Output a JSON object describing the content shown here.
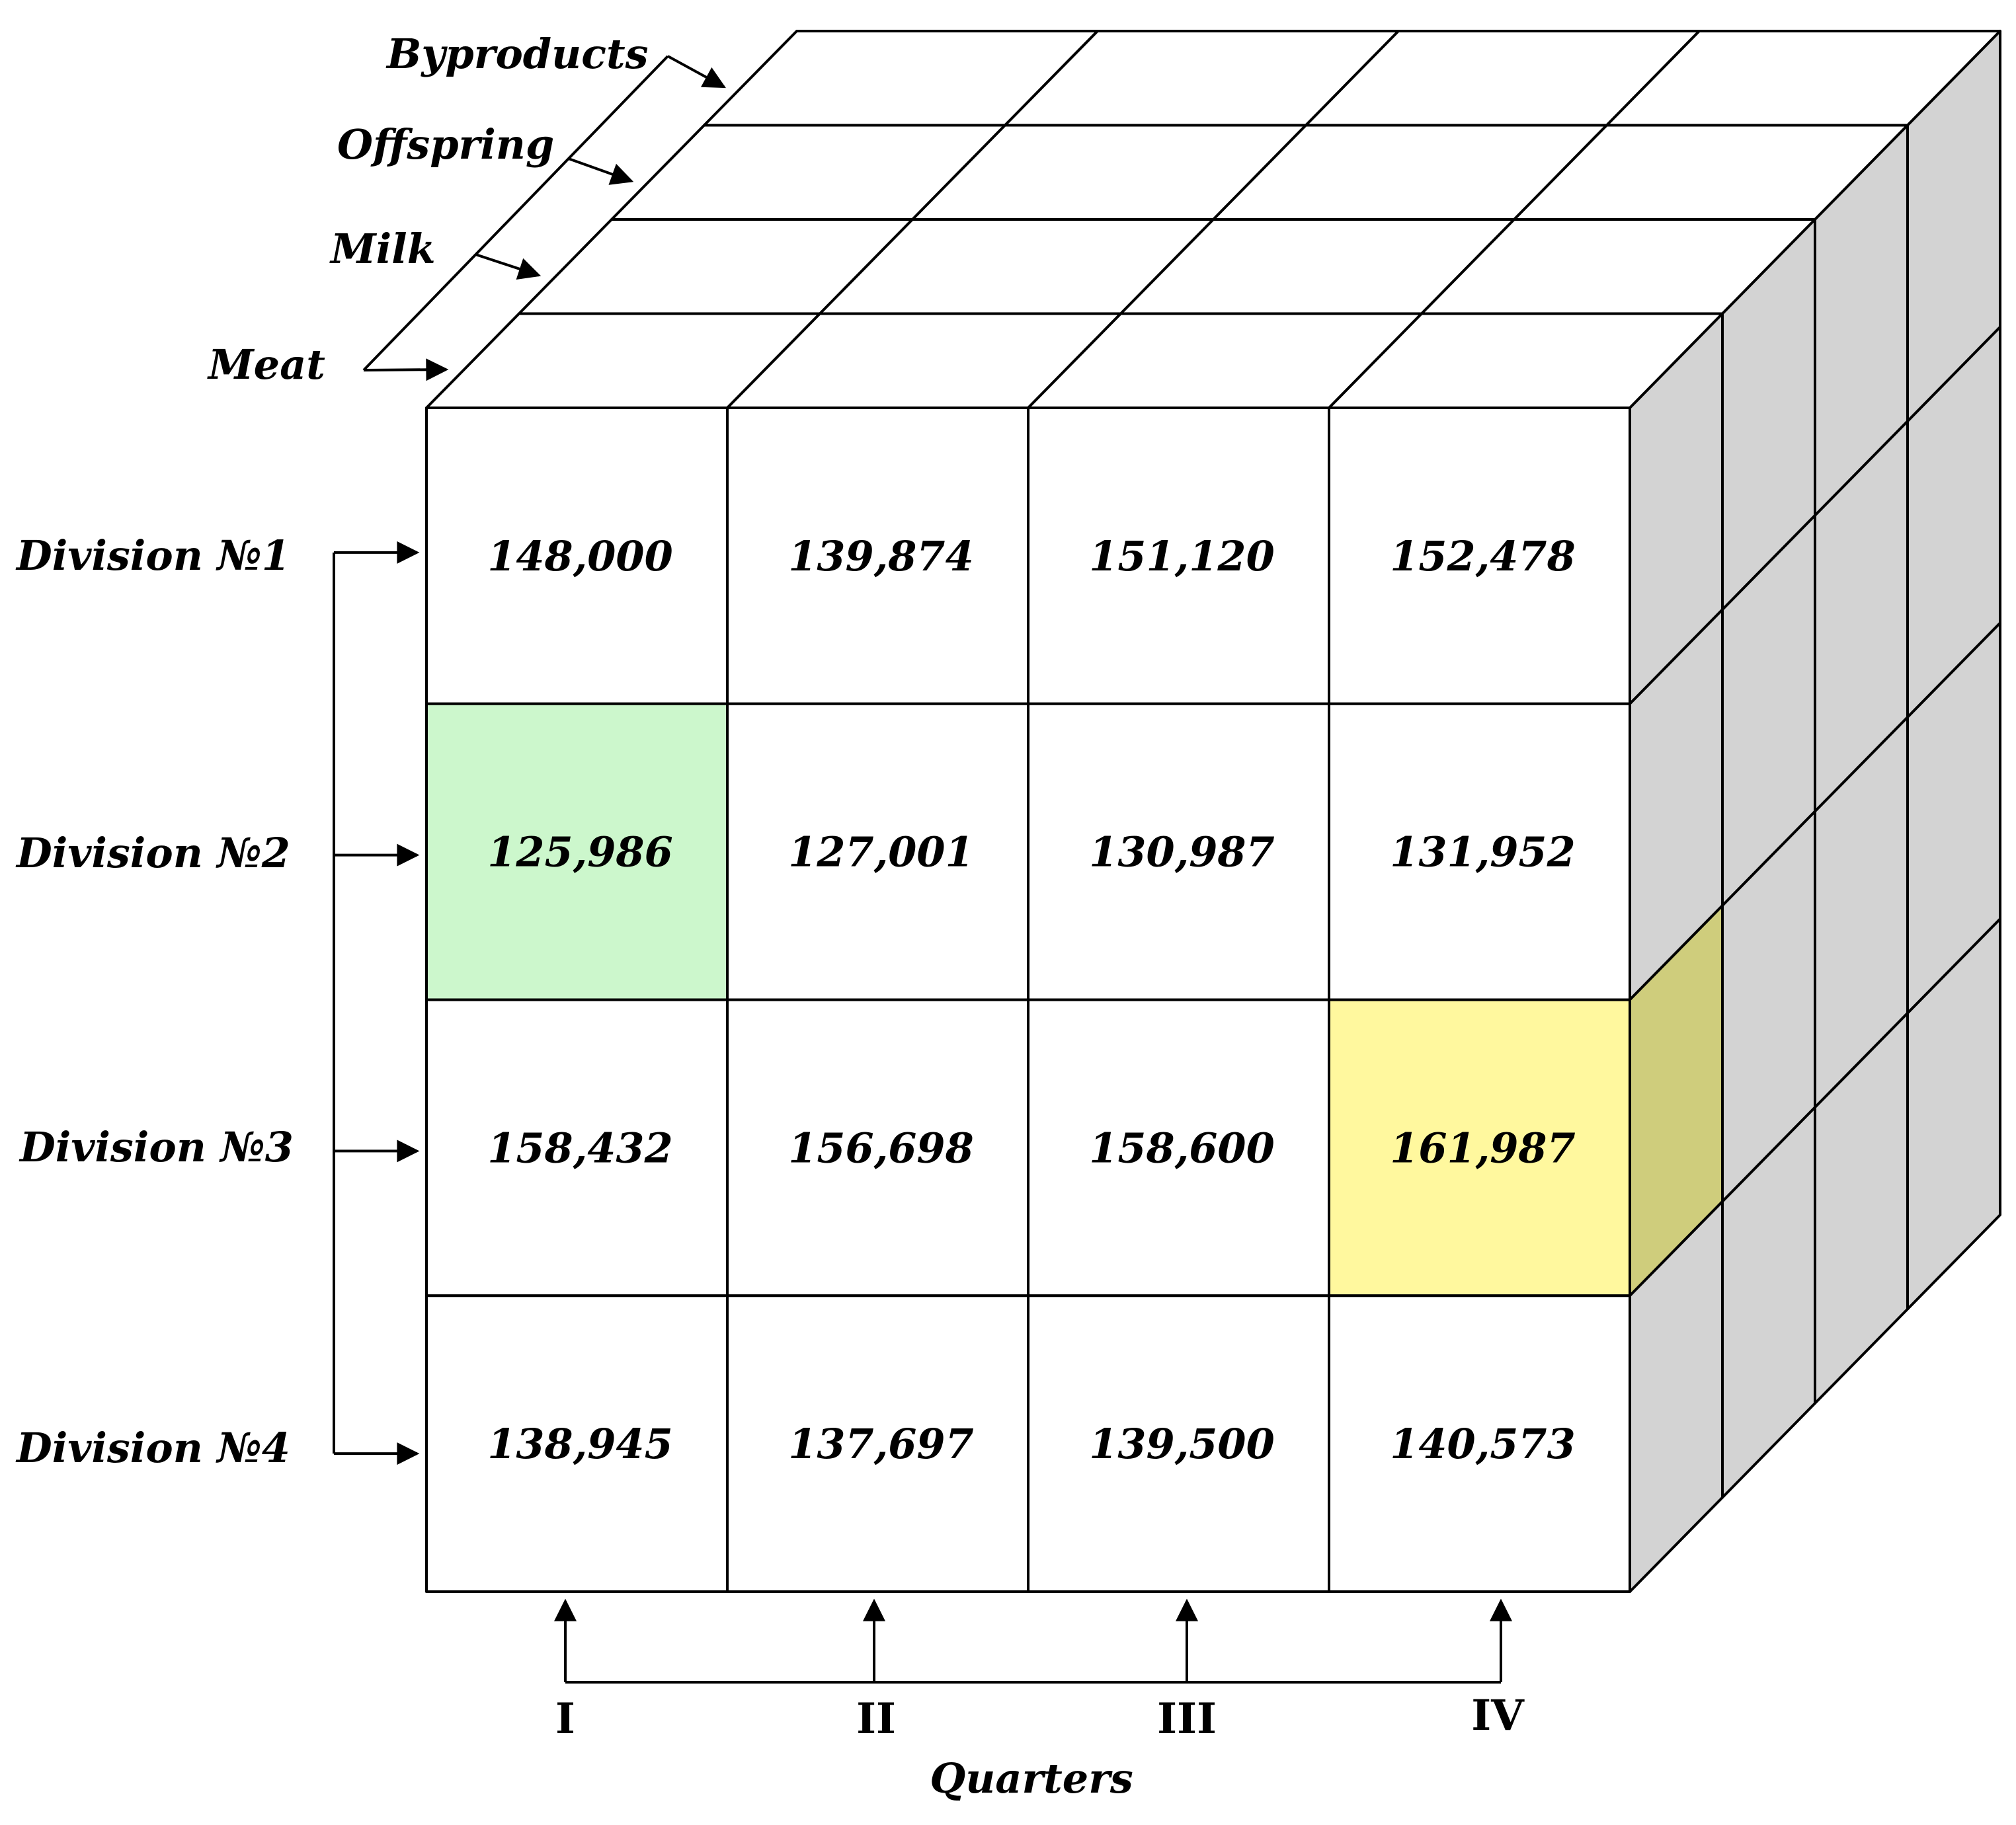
{
  "products": [
    "Meat",
    "Milk",
    "Offspring",
    "Byproducts"
  ],
  "divisions": [
    "Division №1",
    "Division №2",
    "Division №3",
    "Division №4"
  ],
  "quarters": [
    "I",
    "II",
    "III",
    "IV"
  ],
  "axis_label": "Quarters",
  "values": [
    [
      "148,000",
      "139,874",
      "151,120",
      "152,478"
    ],
    [
      "125,986",
      "127,001",
      "130,987",
      "131,952"
    ],
    [
      "158,432",
      "156,698",
      "158,600",
      "161,987"
    ],
    [
      "138,945",
      "137,697",
      "139,500",
      "140,573"
    ]
  ],
  "highlights": [
    {
      "row": 1,
      "col": 0,
      "color": "#ccf7cc"
    },
    {
      "row": 2,
      "col": 3,
      "color": "#fff89e",
      "side_color": "#cfcd7c"
    }
  ],
  "colors": {
    "front": "#ffffff",
    "top": "#ffffff",
    "side": "#d3d3d3",
    "line": "#000000"
  }
}
